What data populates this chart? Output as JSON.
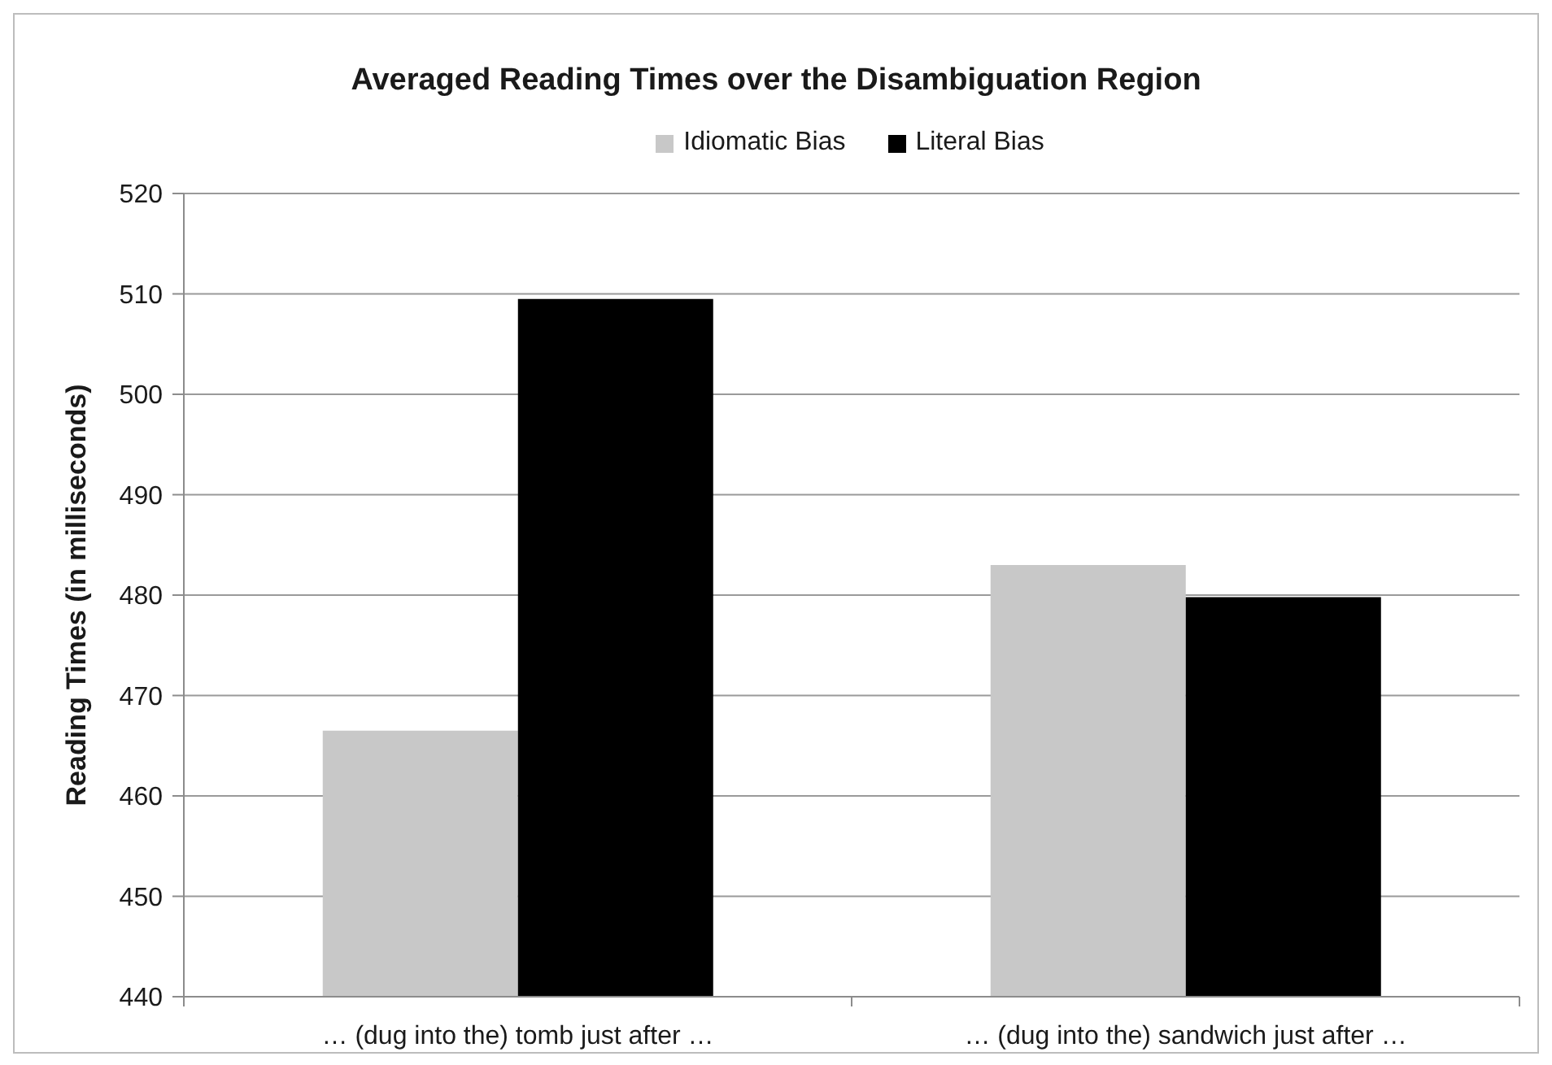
{
  "chart_data": {
    "type": "bar",
    "title": "Averaged Reading Times over the Disambiguation Region",
    "ylabel": "Reading Times (in milliseconds)",
    "categories": [
      "… (dug into the) tomb just after …",
      "… (dug into the) sandwich just after …"
    ],
    "series": [
      {
        "name": "Idiomatic Bias",
        "color": "#c8c8c8",
        "values": [
          466.5,
          483.0
        ]
      },
      {
        "name": "Literal Bias",
        "color": "#000000",
        "values": [
          509.5,
          479.8
        ]
      }
    ],
    "ylim": [
      440,
      520
    ],
    "yticks": [
      440,
      450,
      460,
      470,
      480,
      490,
      500,
      510,
      520
    ],
    "grid": "y",
    "legend": "top"
  }
}
